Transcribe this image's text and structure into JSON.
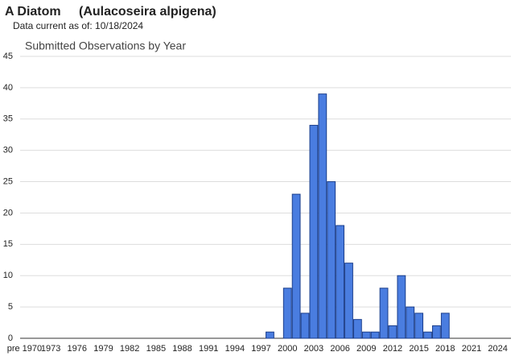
{
  "header": {
    "name": "A Diatom",
    "scientific_name": "(Aulacoseira alpigena)",
    "subtitle": "Data current as of: 10/18/2024"
  },
  "chart_data": {
    "type": "bar",
    "title": "Submitted Observations by Year",
    "categories": [
      "pre 1970",
      null,
      null,
      "1973",
      null,
      null,
      "1976",
      null,
      null,
      "1979",
      null,
      null,
      "1982",
      null,
      null,
      "1985",
      null,
      null,
      "1988",
      null,
      null,
      "1991",
      null,
      null,
      "1994",
      null,
      null,
      "1997",
      null,
      null,
      "2000",
      null,
      null,
      "2003",
      null,
      null,
      "2006",
      null,
      null,
      "2009",
      null,
      null,
      "2012",
      null,
      null,
      "2015",
      null,
      null,
      "2018",
      null,
      null,
      "2021",
      null,
      null,
      "2024",
      null
    ],
    "values": [
      0,
      0,
      0,
      0,
      0,
      0,
      0,
      0,
      0,
      0,
      0,
      0,
      0,
      0,
      0,
      0,
      0,
      0,
      0,
      0,
      0,
      0,
      0,
      0,
      0,
      0,
      0,
      0,
      1,
      0,
      8,
      23,
      4,
      34,
      39,
      25,
      18,
      12,
      3,
      1,
      1,
      8,
      2,
      10,
      5,
      4,
      1,
      2,
      4,
      0,
      0,
      0,
      0,
      0,
      0,
      0
    ],
    "color": "#4a7de0",
    "ylim": [
      0,
      45
    ],
    "yticks": [
      0,
      5,
      10,
      15,
      20,
      25,
      30,
      35,
      40,
      45
    ],
    "grid": true
  }
}
